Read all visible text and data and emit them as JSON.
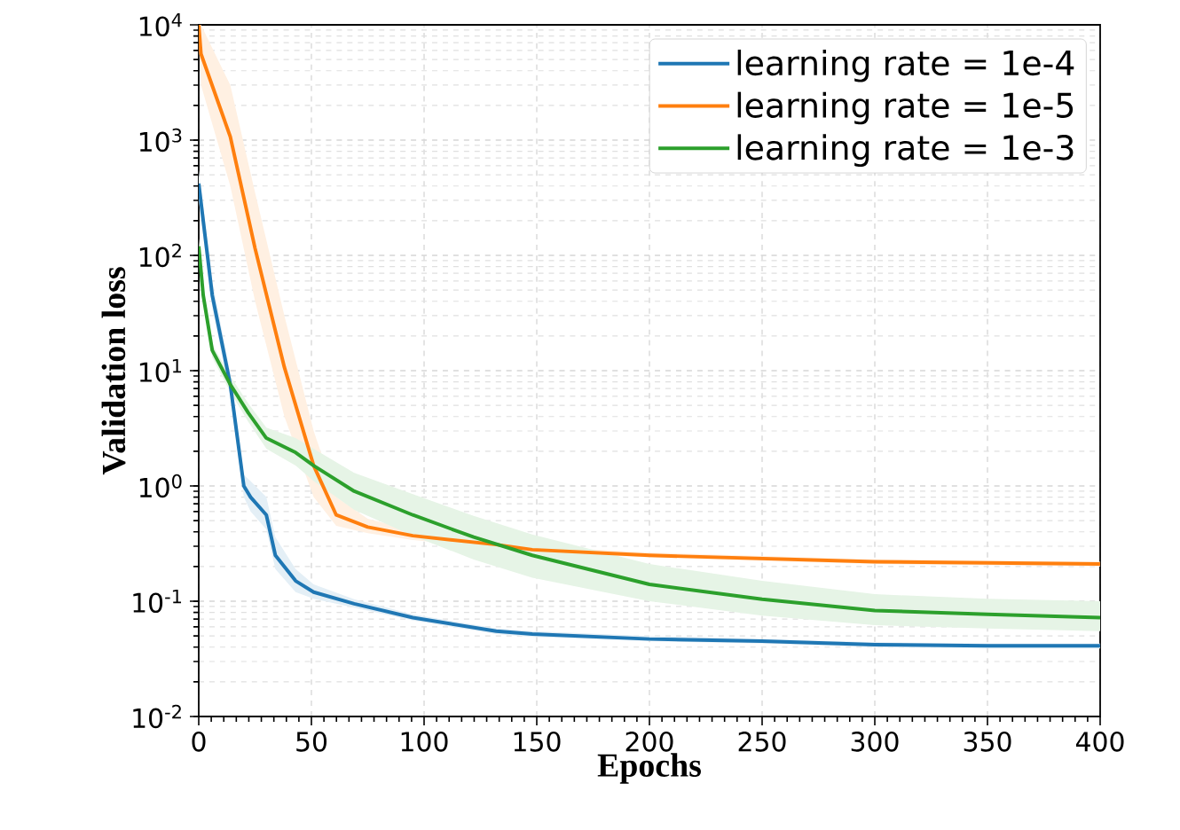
{
  "chart_data": {
    "type": "line",
    "xlabel": "Epochs",
    "ylabel": "Validation loss",
    "log": "y",
    "grid": true,
    "legend": "top right",
    "line_style": "solid",
    "marker": "none",
    "xlim": [
      0,
      400
    ],
    "xticks": [
      0,
      50,
      100,
      150,
      200,
      250,
      300,
      350,
      400
    ],
    "ylim": [
      0.01,
      10000
    ],
    "yticks": [
      {
        "value": 0.01,
        "label": "10$^{-2}$"
      },
      {
        "value": 0.1,
        "label": "10$^{-1}$"
      },
      {
        "value": 1,
        "label": "10$^{0}$"
      },
      {
        "value": 10,
        "label": "10$^{1}$"
      },
      {
        "value": 100,
        "label": "10$^{2}$"
      },
      {
        "value": 1000,
        "label": "10$^{3}$"
      },
      {
        "value": 10000,
        "label": "10$^{4}$"
      }
    ],
    "series": [
      {
        "name": "learning rate = 1e-4",
        "color": "#1f77b4",
        "x": [
          0,
          6,
          14,
          20,
          23,
          30,
          34,
          43,
          51,
          69,
          95,
          132,
          148,
          200,
          250,
          300,
          350,
          400
        ],
        "values": [
          420,
          45,
          7.6,
          1.0,
          0.8,
          0.56,
          0.25,
          0.15,
          0.12,
          0.095,
          0.072,
          0.055,
          0.052,
          0.047,
          0.045,
          0.042,
          0.041,
          0.041
        ],
        "lower": [
          300,
          35,
          6,
          0.8,
          0.6,
          0.42,
          0.19,
          0.12,
          0.105,
          0.088,
          0.068,
          0.052,
          0.049,
          0.045,
          0.043,
          0.04,
          0.039,
          0.039
        ],
        "upper": [
          550,
          60,
          9.5,
          1.25,
          1.1,
          0.8,
          0.36,
          0.19,
          0.14,
          0.104,
          0.077,
          0.058,
          0.055,
          0.05,
          0.047,
          0.044,
          0.043,
          0.043
        ]
      },
      {
        "name": "learning rate = 1e-5",
        "color": "#ff7f0e",
        "x": [
          0,
          1,
          14,
          25,
          38,
          51,
          61,
          75,
          95,
          132,
          148,
          200,
          300,
          400
        ],
        "values": [
          10000,
          5600,
          1070,
          115,
          10.7,
          1.5,
          0.56,
          0.44,
          0.37,
          0.31,
          0.28,
          0.25,
          0.22,
          0.21
        ],
        "lower": [
          7000,
          3000,
          400,
          40,
          4,
          0.8,
          0.45,
          0.39,
          0.34,
          0.29,
          0.265,
          0.24,
          0.21,
          0.2
        ],
        "upper": [
          10000,
          10000,
          3000,
          350,
          30,
          3,
          0.8,
          0.52,
          0.41,
          0.33,
          0.3,
          0.265,
          0.23,
          0.22
        ]
      },
      {
        "name": "learning rate = 1e-3",
        "color": "#2ca02c",
        "x": [
          0,
          2,
          6,
          14,
          22,
          30,
          43,
          51,
          69,
          95,
          122,
          148,
          200,
          250,
          300,
          350,
          400
        ],
        "values": [
          120,
          45,
          15,
          7.6,
          4.3,
          2.6,
          1.95,
          1.5,
          0.9,
          0.56,
          0.36,
          0.25,
          0.14,
          0.104,
          0.083,
          0.077,
          0.072
        ],
        "lower": [
          100,
          38,
          13,
          6.5,
          3.6,
          2.1,
          1.5,
          1.1,
          0.62,
          0.37,
          0.23,
          0.16,
          0.1,
          0.075,
          0.062,
          0.058,
          0.055
        ],
        "upper": [
          140,
          52,
          17,
          9,
          5.2,
          3.2,
          2.6,
          2.1,
          1.3,
          0.85,
          0.55,
          0.38,
          0.21,
          0.15,
          0.115,
          0.105,
          0.1
        ]
      }
    ]
  }
}
